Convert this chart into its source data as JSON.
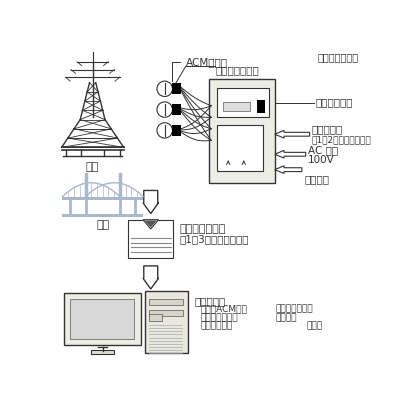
{
  "bg_color": "#ffffff",
  "text_color": "#000000",
  "line_color": "#333333",
  "gray_fill": "#e8e8e0",
  "light_blue": "#aab8cc",
  "labels": {
    "acm_sensor": "ACMセンサ",
    "temp_sensor": "温・湿度センサ",
    "data_logger": "データロガー",
    "battery": "バッテリー",
    "battery_sub": "（1～2ヶ月毎に交換）",
    "ac_power": "AC 電源",
    "ac_power_v": "100V",
    "solar": "太陽電池",
    "tower": "鉄塔",
    "bridge": "橋梁",
    "memory": "メモリーカード",
    "memory_sub": "（1～3ヶ月毎に回収）",
    "analysis": "解析データ",
    "line1a": "時間－ACM出力",
    "line1b": "時間－温度出力",
    "line2a": "時間－湿度出力",
    "line2b": "濡れ時間",
    "line3a": "日平均電気量",
    "line3b": "その他",
    "power_example": "〈使用電源例〉"
  }
}
